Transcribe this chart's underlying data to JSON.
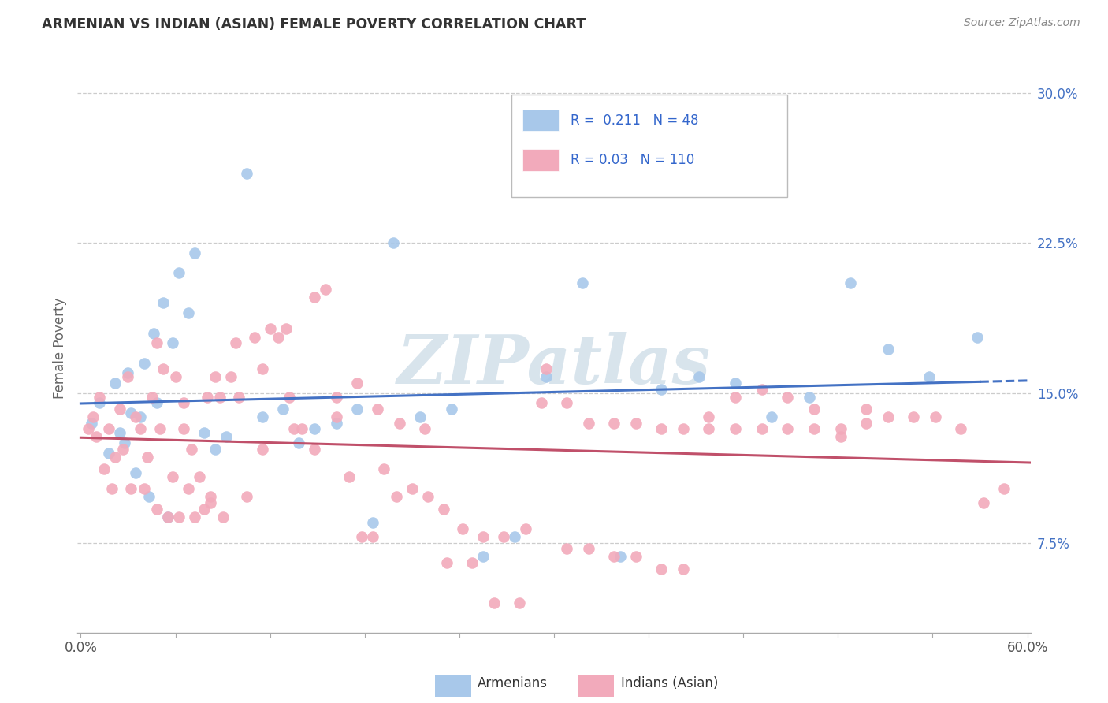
{
  "title": "ARMENIAN VS INDIAN (ASIAN) FEMALE POVERTY CORRELATION CHART",
  "source": "Source: ZipAtlas.com",
  "ylabel": "Female Poverty",
  "yticks": [
    0.075,
    0.15,
    0.225,
    0.3
  ],
  "ytick_labels": [
    "7.5%",
    "15.0%",
    "22.5%",
    "30.0%"
  ],
  "xlim": [
    0.0,
    0.6
  ],
  "ylim": [
    0.03,
    0.315
  ],
  "armenian_R": 0.211,
  "armenian_N": 48,
  "indian_R": 0.03,
  "indian_N": 110,
  "armenian_color": "#A8C8EA",
  "indian_color": "#F2AABB",
  "armenian_line_color": "#4472C4",
  "indian_line_color": "#C0506A",
  "watermark": "ZIPatlas",
  "legend_armenians": "Armenians",
  "legend_indians": "Indians (Asian)",
  "arm_x": [
    0.007,
    0.012,
    0.018,
    0.022,
    0.025,
    0.028,
    0.03,
    0.032,
    0.035,
    0.038,
    0.04,
    0.043,
    0.046,
    0.048,
    0.052,
    0.055,
    0.058,
    0.062,
    0.068,
    0.072,
    0.078,
    0.085,
    0.092,
    0.105,
    0.115,
    0.128,
    0.138,
    0.148,
    0.162,
    0.175,
    0.185,
    0.198,
    0.215,
    0.235,
    0.255,
    0.275,
    0.295,
    0.318,
    0.342,
    0.368,
    0.392,
    0.415,
    0.438,
    0.462,
    0.488,
    0.512,
    0.538,
    0.568
  ],
  "arm_y": [
    0.135,
    0.145,
    0.12,
    0.155,
    0.13,
    0.125,
    0.16,
    0.14,
    0.11,
    0.138,
    0.165,
    0.098,
    0.18,
    0.145,
    0.195,
    0.088,
    0.175,
    0.21,
    0.19,
    0.22,
    0.13,
    0.122,
    0.128,
    0.26,
    0.138,
    0.142,
    0.125,
    0.132,
    0.135,
    0.142,
    0.085,
    0.225,
    0.138,
    0.142,
    0.068,
    0.078,
    0.158,
    0.205,
    0.068,
    0.152,
    0.158,
    0.155,
    0.138,
    0.148,
    0.205,
    0.172,
    0.158,
    0.178
  ],
  "ind_x": [
    0.005,
    0.008,
    0.01,
    0.012,
    0.015,
    0.018,
    0.02,
    0.022,
    0.025,
    0.027,
    0.03,
    0.032,
    0.035,
    0.038,
    0.04,
    0.042,
    0.045,
    0.048,
    0.05,
    0.052,
    0.055,
    0.058,
    0.06,
    0.062,
    0.065,
    0.068,
    0.07,
    0.072,
    0.075,
    0.078,
    0.08,
    0.082,
    0.085,
    0.088,
    0.09,
    0.095,
    0.1,
    0.105,
    0.11,
    0.115,
    0.12,
    0.125,
    0.13,
    0.135,
    0.14,
    0.148,
    0.155,
    0.162,
    0.17,
    0.178,
    0.185,
    0.192,
    0.2,
    0.21,
    0.22,
    0.23,
    0.242,
    0.255,
    0.268,
    0.282,
    0.295,
    0.308,
    0.322,
    0.338,
    0.352,
    0.368,
    0.382,
    0.398,
    0.415,
    0.432,
    0.448,
    0.465,
    0.482,
    0.498,
    0.512,
    0.528,
    0.542,
    0.558,
    0.572,
    0.585,
    0.048,
    0.065,
    0.082,
    0.098,
    0.115,
    0.132,
    0.148,
    0.162,
    0.175,
    0.188,
    0.202,
    0.218,
    0.232,
    0.248,
    0.262,
    0.278,
    0.292,
    0.308,
    0.322,
    0.338,
    0.352,
    0.368,
    0.382,
    0.398,
    0.415,
    0.432,
    0.448,
    0.465,
    0.482,
    0.498
  ],
  "ind_y": [
    0.132,
    0.138,
    0.128,
    0.148,
    0.112,
    0.132,
    0.102,
    0.118,
    0.142,
    0.122,
    0.158,
    0.102,
    0.138,
    0.132,
    0.102,
    0.118,
    0.148,
    0.092,
    0.132,
    0.162,
    0.088,
    0.108,
    0.158,
    0.088,
    0.132,
    0.102,
    0.122,
    0.088,
    0.108,
    0.092,
    0.148,
    0.098,
    0.158,
    0.148,
    0.088,
    0.158,
    0.148,
    0.098,
    0.178,
    0.122,
    0.182,
    0.178,
    0.182,
    0.132,
    0.132,
    0.122,
    0.202,
    0.148,
    0.108,
    0.078,
    0.078,
    0.112,
    0.098,
    0.102,
    0.098,
    0.092,
    0.082,
    0.078,
    0.078,
    0.082,
    0.162,
    0.072,
    0.072,
    0.068,
    0.068,
    0.062,
    0.062,
    0.138,
    0.148,
    0.152,
    0.148,
    0.142,
    0.128,
    0.142,
    0.138,
    0.138,
    0.138,
    0.132,
    0.095,
    0.102,
    0.175,
    0.145,
    0.095,
    0.175,
    0.162,
    0.148,
    0.198,
    0.138,
    0.155,
    0.142,
    0.135,
    0.132,
    0.065,
    0.065,
    0.045,
    0.045,
    0.145,
    0.145,
    0.135,
    0.135,
    0.135,
    0.132,
    0.132,
    0.132,
    0.132,
    0.132,
    0.132,
    0.132,
    0.132,
    0.135
  ]
}
